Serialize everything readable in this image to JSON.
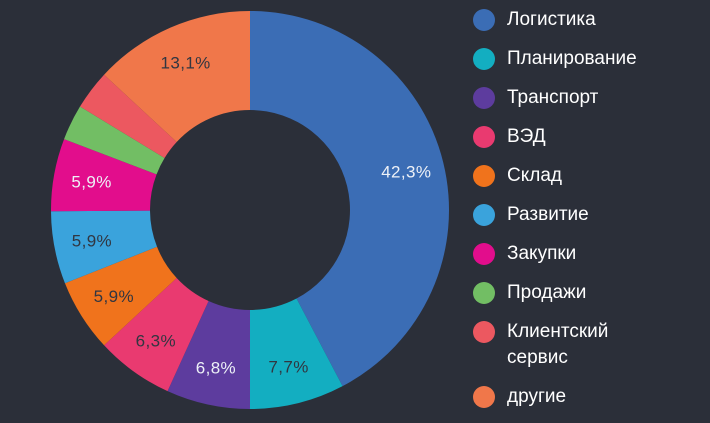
{
  "colors": {
    "background": "#2B2F39",
    "label_light": "#EDF1F7",
    "label_dark": "#313641",
    "legend_text": "#FFFFFF"
  },
  "chart_data": {
    "type": "pie",
    "subtype": "donut",
    "title": "",
    "units": "%",
    "decimal_separator": ",",
    "legend_position": "right",
    "start_angle_deg": 0,
    "direction": "clockwise",
    "segments": [
      {
        "name": "Логистика",
        "value": 42.3,
        "color": "#3B6DB5",
        "label": "42,3%",
        "label_color": "light"
      },
      {
        "name": "Планирование",
        "value": 7.7,
        "color": "#13AEC1",
        "label": "7,7%",
        "label_color": "dark"
      },
      {
        "name": "Транспорт",
        "value": 6.8,
        "color": "#5D3C9E",
        "label": "6,8%",
        "label_color": "light"
      },
      {
        "name": "ВЭД",
        "value": 6.3,
        "color": "#E93A70",
        "label": "6,3%",
        "label_color": "dark"
      },
      {
        "name": "Склад",
        "value": 5.9,
        "color": "#F0731C",
        "label": "5,9%",
        "label_color": "dark"
      },
      {
        "name": "Развитие",
        "value": 5.9,
        "color": "#3AA3DC",
        "label": "5,9%",
        "label_color": "dark"
      },
      {
        "name": "Закупки",
        "value": 5.9,
        "color": "#E20D8C",
        "label": "5,9%",
        "label_color": "light"
      },
      {
        "name": "Продажи",
        "value": 2.9,
        "color": "#72BE64",
        "label": "",
        "label_color": "dark"
      },
      {
        "name": "Клиентский сервис",
        "value": 3.2,
        "color": "#EC5860",
        "label": "",
        "label_color": "dark"
      },
      {
        "name": "другие",
        "value": 13.1,
        "color": "#F0774A",
        "label": "13,1%",
        "label_color": "dark"
      }
    ]
  }
}
